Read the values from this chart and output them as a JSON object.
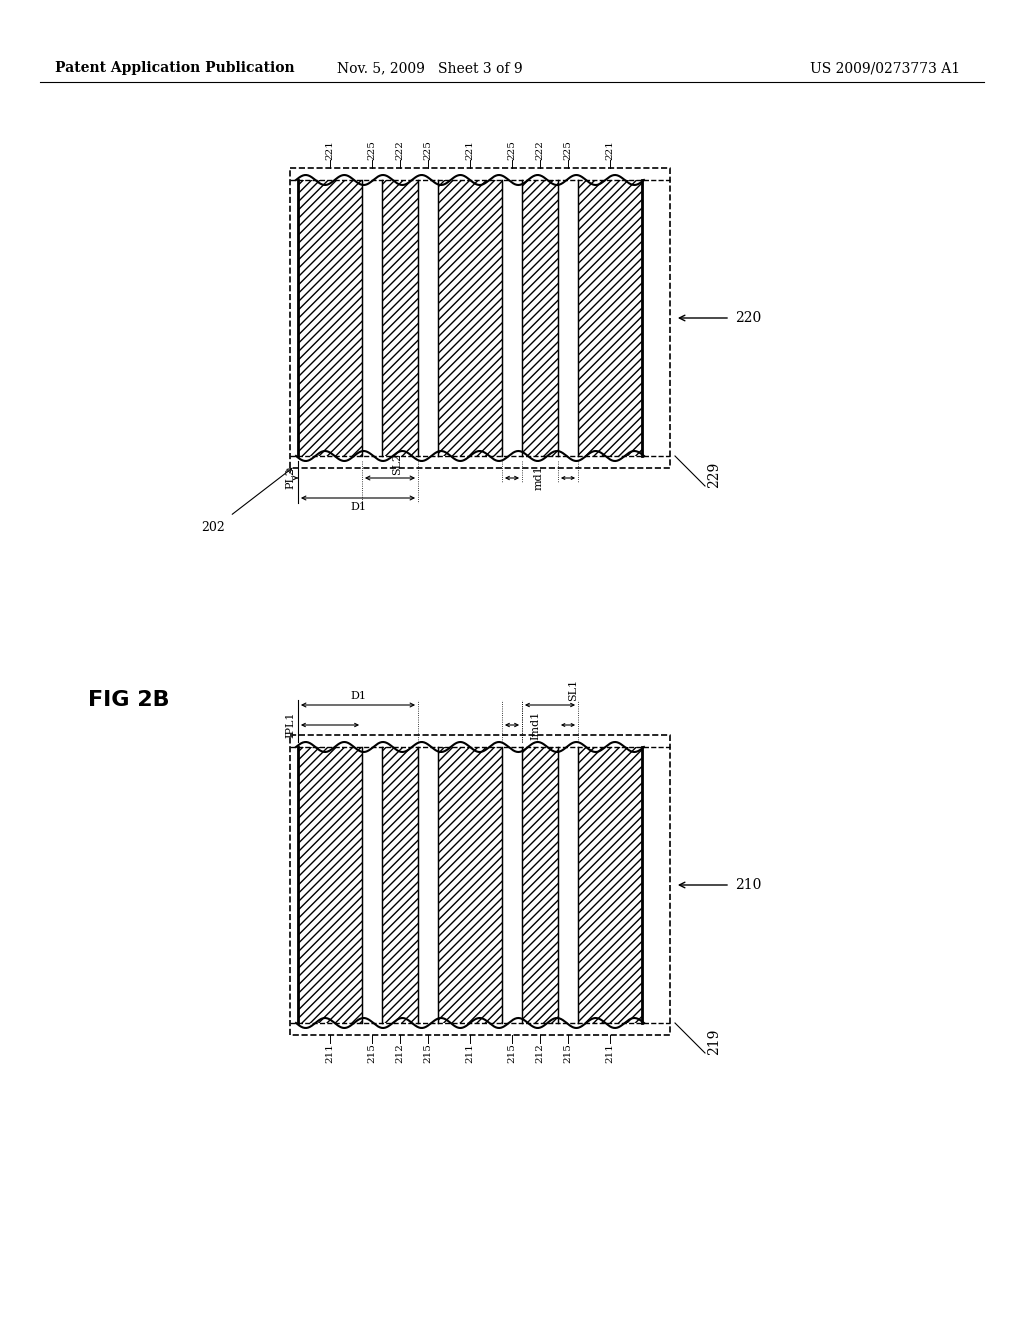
{
  "header_left": "Patent Application Publication",
  "header_mid": "Nov. 5, 2009   Sheet 3 of 9",
  "header_right": "US 2009/0273773 A1",
  "fig_label": "FIG 2B",
  "bg_color": "#ffffff",
  "line_color": "#000000",
  "top_diagram": {
    "label": "220",
    "sub_label": "229",
    "stripe_labels": [
      "221",
      "225",
      "222",
      "225",
      "221",
      "225",
      "222",
      "225",
      "221"
    ],
    "hatched": [
      true,
      false,
      true,
      false,
      true,
      false,
      true,
      false,
      true
    ]
  },
  "bottom_diagram": {
    "label": "210",
    "sub_label": "219",
    "stripe_labels": [
      "211",
      "215",
      "212",
      "215",
      "211",
      "215",
      "212",
      "215",
      "211"
    ],
    "hatched": [
      true,
      false,
      true,
      false,
      true,
      false,
      true,
      false,
      true
    ]
  }
}
